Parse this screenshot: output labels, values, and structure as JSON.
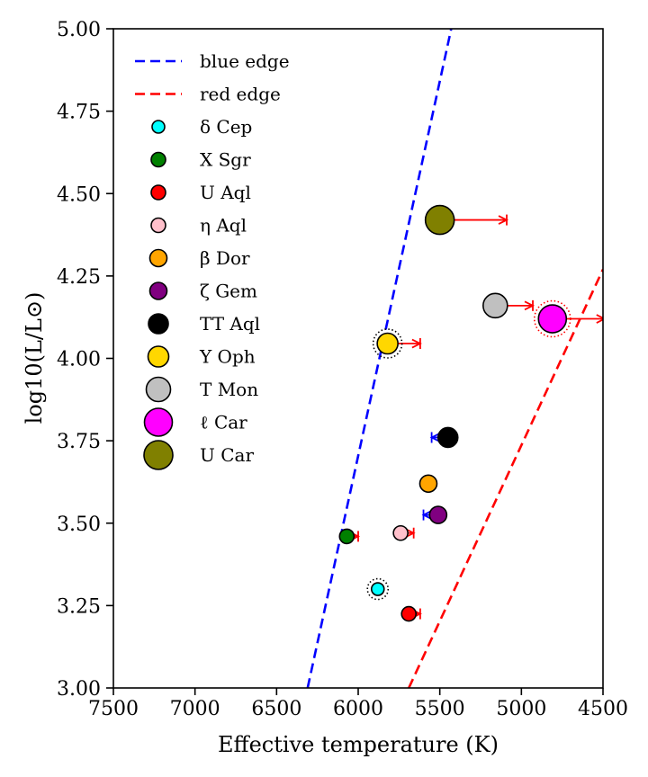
{
  "chart_data": {
    "type": "scatter",
    "title": "",
    "xlabel": "Effective temperature (K)",
    "ylabel": "log10(L/L⊙)",
    "xlim": [
      7500,
      4500
    ],
    "ylim": [
      3.0,
      5.0
    ],
    "x_ticks": [
      7500,
      7000,
      6500,
      6000,
      5500,
      5000,
      4500
    ],
    "x_tick_labels": [
      "7500",
      "7000",
      "6500",
      "6000",
      "5500",
      "5000",
      "4500"
    ],
    "y_ticks": [
      3.0,
      3.25,
      3.5,
      3.75,
      4.0,
      4.25,
      4.5,
      4.75,
      5.0
    ],
    "y_tick_labels": [
      "3.00",
      "3.25",
      "3.50",
      "3.75",
      "4.00",
      "4.25",
      "4.50",
      "4.75",
      "5.00"
    ],
    "grid": false,
    "legend_position": "top-left",
    "edges": [
      {
        "name": "blue edge",
        "color": "#0000ff",
        "x": [
          6310,
          5430
        ],
        "y": [
          3.0,
          5.0
        ]
      },
      {
        "name": "red edge",
        "color": "#ff0000",
        "x": [
          5690,
          4500
        ],
        "y": [
          3.0,
          4.27
        ]
      }
    ],
    "stars": [
      {
        "name": "δ Cep",
        "teff": 5880,
        "logL": 3.3,
        "color": "#00ffff",
        "size": 7,
        "dotted_ring": true,
        "arrow": {
          "dir": "left",
          "color": "#ff0000",
          "length": 15
        }
      },
      {
        "name": "X Sgr",
        "teff": 6070,
        "logL": 3.46,
        "color": "#008000",
        "size": 8,
        "dotted_ring": false,
        "arrow": {
          "dir": "right",
          "color": "#ff0000",
          "length": 70
        }
      },
      {
        "name": "U Aql",
        "teff": 5690,
        "logL": 3.225,
        "color": "#ff0000",
        "size": 8,
        "dotted_ring": false,
        "arrow": {
          "dir": "right",
          "color": "#ff0000",
          "length": 70
        }
      },
      {
        "name": "η Aql",
        "teff": 5740,
        "logL": 3.47,
        "color": "#ffc0cb",
        "size": 8,
        "dotted_ring": false,
        "arrow": {
          "dir": "right",
          "color": "#ff0000",
          "length": 80
        }
      },
      {
        "name": "β Dor",
        "teff": 5570,
        "logL": 3.62,
        "color": "#ffa500",
        "size": 9.5,
        "dotted_ring": false,
        "arrow": null
      },
      {
        "name": "ζ Gem",
        "teff": 5510,
        "logL": 3.525,
        "color": "#800080",
        "size": 9.5,
        "dotted_ring": false,
        "arrow": {
          "dir": "left",
          "color": "#0000ff",
          "length": 90
        }
      },
      {
        "name": "TT Aql",
        "teff": 5450,
        "logL": 3.76,
        "color": "#000000",
        "size": 11,
        "dotted_ring": false,
        "arrow": {
          "dir": "left",
          "color": "#0000ff",
          "length": 100
        }
      },
      {
        "name": "Y Oph",
        "teff": 5820,
        "logL": 4.045,
        "color": "#ffd700",
        "size": 11.5,
        "dotted_ring": true,
        "arrow": {
          "dir": "right",
          "color": "#ff0000",
          "length": 200
        }
      },
      {
        "name": "T Mon",
        "teff": 5160,
        "logL": 4.16,
        "color": "#c0c0c0",
        "size": 13.5,
        "dotted_ring": false,
        "arrow": {
          "dir": "right",
          "color": "#ff0000",
          "length": 230
        }
      },
      {
        "name": "ℓ Car",
        "teff": 4810,
        "logL": 4.12,
        "color": "#ff00ff",
        "size": 15.5,
        "dotted_ring": true,
        "arrow": {
          "dir": "right",
          "color": "#ff0000",
          "length": 320
        }
      },
      {
        "name": "U Car",
        "teff": 5500,
        "logL": 4.42,
        "color": "#808000",
        "size": 16,
        "dotted_ring": false,
        "arrow": {
          "dir": "right",
          "color": "#ff0000",
          "length": 410
        }
      }
    ]
  }
}
